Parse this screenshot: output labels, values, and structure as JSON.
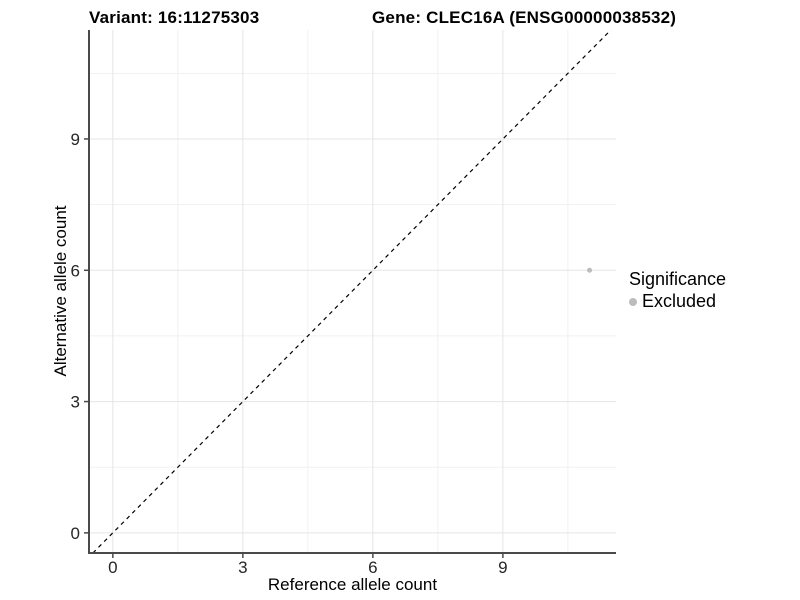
{
  "header": {
    "variant_title": "Variant: 16:11275303",
    "gene_title": "Gene: CLEC16A (ENSG00000038532)"
  },
  "chart_data": {
    "type": "scatter",
    "title": "",
    "xlabel": "Reference allele count",
    "ylabel": "Alternative allele count",
    "x_ticks": [
      0,
      3,
      6,
      9
    ],
    "y_ticks": [
      0,
      3,
      6,
      9
    ],
    "x_minor": [
      1.5,
      4.5,
      7.5,
      10.5
    ],
    "y_minor": [
      1.5,
      4.5,
      7.5,
      10.5
    ],
    "xlim": [
      -0.55,
      11.61
    ],
    "ylim": [
      -0.46,
      11.49
    ],
    "grid": true,
    "legend_position": "right",
    "series": [
      {
        "name": "Excluded",
        "points": [
          {
            "x": 11,
            "y": 6
          }
        ]
      }
    ],
    "reference_line": {
      "slope": 1,
      "intercept": 0,
      "style": "dashed"
    }
  },
  "legend": {
    "title": "Significance",
    "entries": [
      {
        "label": "Excluded",
        "color": "#bcbcbc"
      }
    ]
  },
  "colors": {
    "background": "#ffffff",
    "grid_major": "#e5e5e5",
    "grid_minor": "#f1f1f1",
    "axis_line": "#4a4a4a",
    "tick_mark": "#4a4a4a",
    "tick_text": "#262626",
    "point": "#bcbcbc",
    "reference_line": "#000000"
  }
}
